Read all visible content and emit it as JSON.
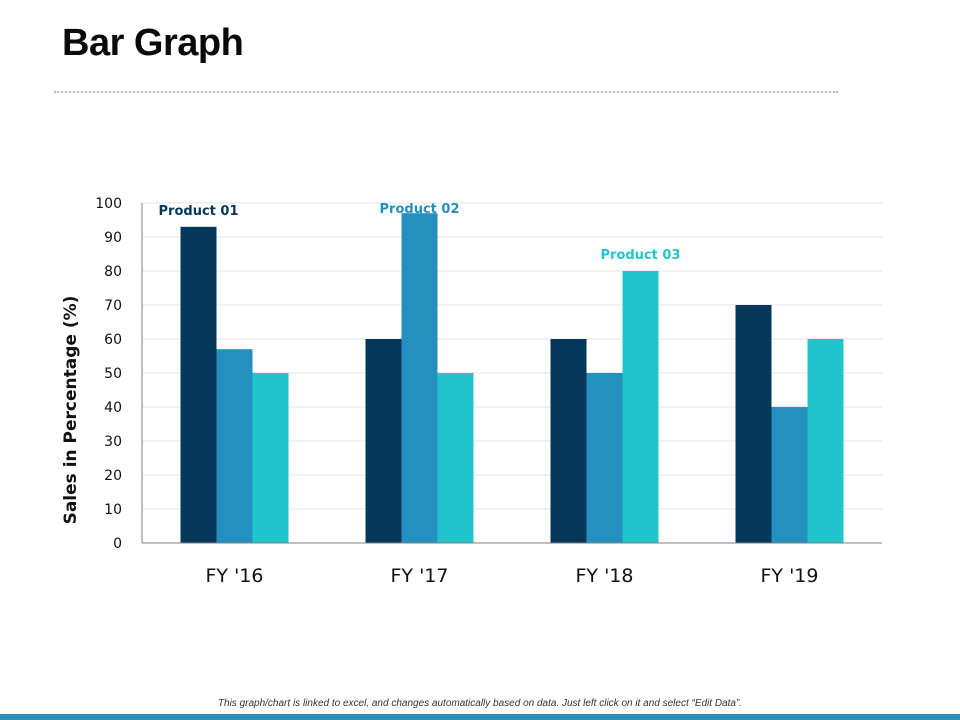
{
  "page": {
    "title": "Bar Graph",
    "footnote": "This graph/chart is linked to excel, and changes automatically based on data. Just left click on it and select “Edit Data”."
  },
  "colors": {
    "product_01": "#04375a",
    "product_02": "#2390c0",
    "product_03": "#22c4cb",
    "accent_bar": "#2a8fbd"
  },
  "chart_data": {
    "type": "bar",
    "title": "",
    "xlabel": "",
    "ylabel": "Sales in Percentage (%)",
    "ylim": [
      0,
      100
    ],
    "yticks": [
      0,
      10,
      20,
      30,
      40,
      50,
      60,
      70,
      80,
      90,
      100
    ],
    "grid": true,
    "categories": [
      "FY '16",
      "FY '17",
      "FY '18",
      "FY '19"
    ],
    "series": [
      {
        "name": "Product 01",
        "color": "#04375a",
        "values": [
          93,
          60,
          60,
          70
        ],
        "label_category_index": 0
      },
      {
        "name": "Product 02",
        "color": "#2390c0",
        "values": [
          57,
          97,
          50,
          40
        ],
        "label_category_index": 1
      },
      {
        "name": "Product 03",
        "color": "#22c4cb",
        "values": [
          50,
          50,
          80,
          60
        ],
        "label_category_index": 2
      }
    ]
  }
}
